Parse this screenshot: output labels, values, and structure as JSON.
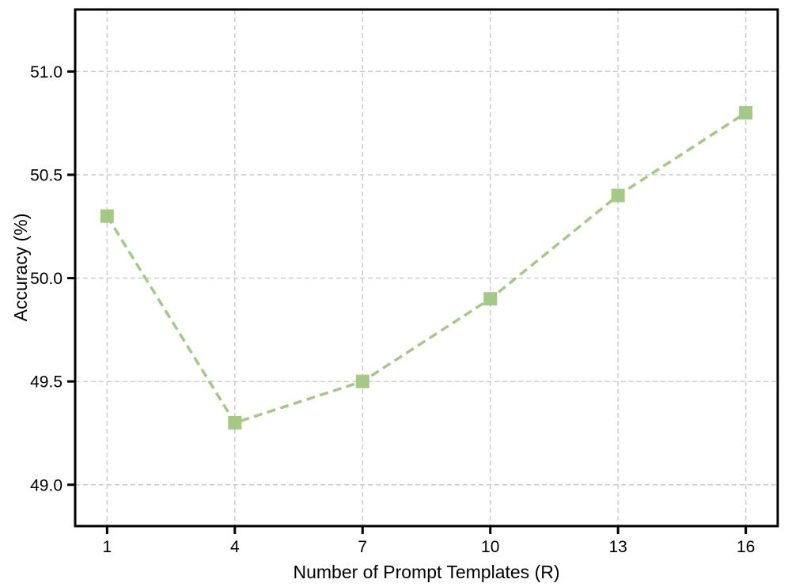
{
  "chart_data": {
    "type": "line",
    "title": "",
    "xlabel": "Number of Prompt Templates (R)",
    "ylabel": "Accuracy (%)",
    "x": [
      1,
      4,
      7,
      10,
      13,
      16
    ],
    "series": [
      {
        "name": "Accuracy",
        "values": [
          50.3,
          49.3,
          49.5,
          49.9,
          50.4,
          50.8
        ]
      }
    ],
    "x_ticks": {
      "values": [
        1,
        4,
        7,
        10,
        13,
        16
      ],
      "labels": [
        "1",
        "4",
        "7",
        "10",
        "13",
        "16"
      ]
    },
    "y_ticks": {
      "values": [
        49.0,
        49.5,
        50.0,
        50.5,
        51.0
      ],
      "labels": [
        "49.0",
        "49.5",
        "50.0",
        "50.5",
        "51.0"
      ]
    },
    "xlim": [
      0.25,
      16.75
    ],
    "ylim": [
      48.8,
      51.3
    ],
    "grid": true,
    "legend": "none",
    "line_style": "dashed",
    "marker": "square",
    "marker_size": 17,
    "colors": {
      "line": "#a3c985",
      "marker": "#a3c985",
      "grid": "#c9c9c9",
      "spine": "#000000",
      "text": "#000000",
      "background": "#ffffff"
    }
  }
}
